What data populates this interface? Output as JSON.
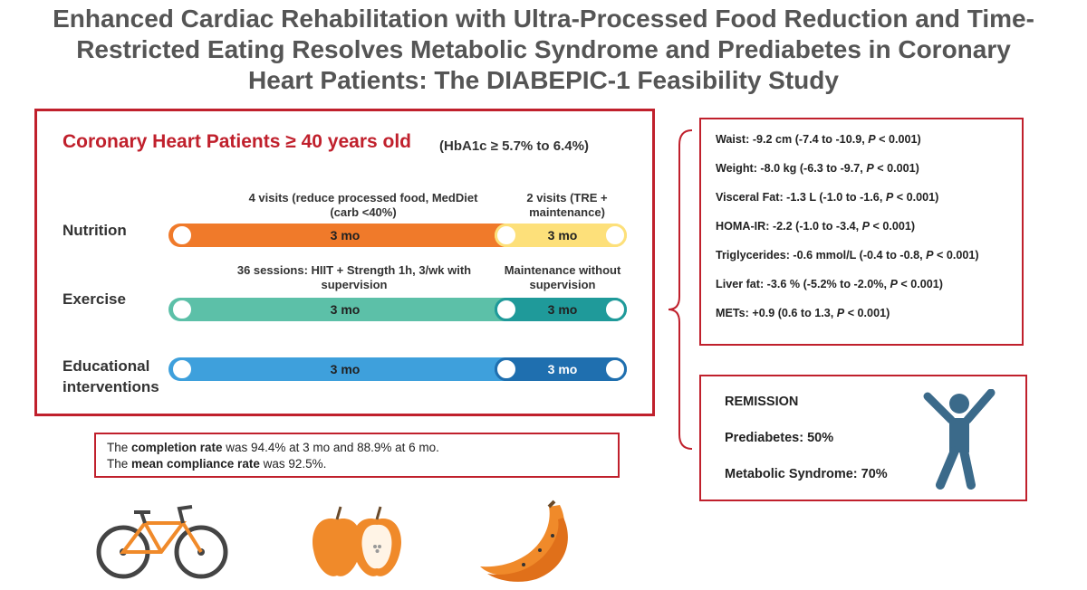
{
  "title": {
    "line1": "Enhanced Cardiac Rehabilitation with Ultra-Processed Food Reduction and Time-",
    "line2": "Restricted Eating Resolves Metabolic Syndrome and Prediabetes in Coronary",
    "line3": "Heart Patients: The DIABEPIC-1 Feasibility Study"
  },
  "protocol": {
    "heading": "Coronary Heart Patients ≥ 40 years old",
    "criteria": "(HbA1c ≥ 5.7% to 6.4%)",
    "rows": [
      {
        "label": "Nutrition",
        "phase1_note": "4 visits (reduce processed food, MedDiet (carb <40%)",
        "phase2_note": "2 visits (TRE + maintenance)",
        "phase1_label": "3 mo",
        "phase2_label": "3 mo"
      },
      {
        "label": "Exercise",
        "phase1_note": "36 sessions: HIIT + Strength 1h, 3/wk with supervision",
        "phase2_note": "Maintenance without supervision",
        "phase1_label": "3 mo",
        "phase2_label": "3 mo"
      },
      {
        "label": "Educational interventions",
        "phase1_label": "3 mo",
        "phase2_label": "3 mo"
      }
    ],
    "colors": {
      "nutrition_1": "#f07a2a",
      "nutrition_2": "#fde07a",
      "exercise_1": "#5cc0a8",
      "exercise_2": "#1f9a9a",
      "education_1": "#3ea0dc",
      "education_2": "#1f6faf"
    }
  },
  "summary": {
    "line1_prefix": "The ",
    "line1_bold": "completion rate",
    "line1_suffix": " was 94.4% at 3 mo and 88.9% at 6 mo.",
    "line2_prefix": "The ",
    "line2_bold": "mean compliance rate",
    "line2_suffix": " was 92.5%."
  },
  "results": [
    {
      "prefix": "Waist: -9.2 cm (-7.4 to -10.9, ",
      "p": "P",
      "suffix": " < 0.001)"
    },
    {
      "prefix": "Weight: -8.0 kg (-6.3 to -9.7, ",
      "p": "P",
      "suffix": " < 0.001)"
    },
    {
      "prefix": "Visceral Fat: -1.3 L (-1.0 to -1.6, ",
      "p": "P",
      "suffix": " < 0.001)"
    },
    {
      "prefix": "HOMA-IR: -2.2 (-1.0 to -3.4, ",
      "p": "P",
      "suffix": " < 0.001)"
    },
    {
      "prefix": "Triglycerides: -0.6 mmol/L (-0.4 to -0.8, ",
      "p": "P",
      "suffix": " < 0.001)"
    },
    {
      "prefix": "Liver fat: -3.6 % (-5.2% to -2.0%, ",
      "p": "P",
      "suffix": " < 0.001)"
    },
    {
      "prefix": "METs: +0.9 (0.6 to 1.3, ",
      "p": "P",
      "suffix": " < 0.001)"
    }
  ],
  "remission": {
    "title": "REMISSION",
    "prediabetes": "Prediabetes: 50%",
    "metabolic": "Metabolic Syndrome: 70%"
  },
  "icons": [
    "bicycle-icon",
    "apple-icon",
    "banana-icon",
    "cheering-person-icon"
  ]
}
